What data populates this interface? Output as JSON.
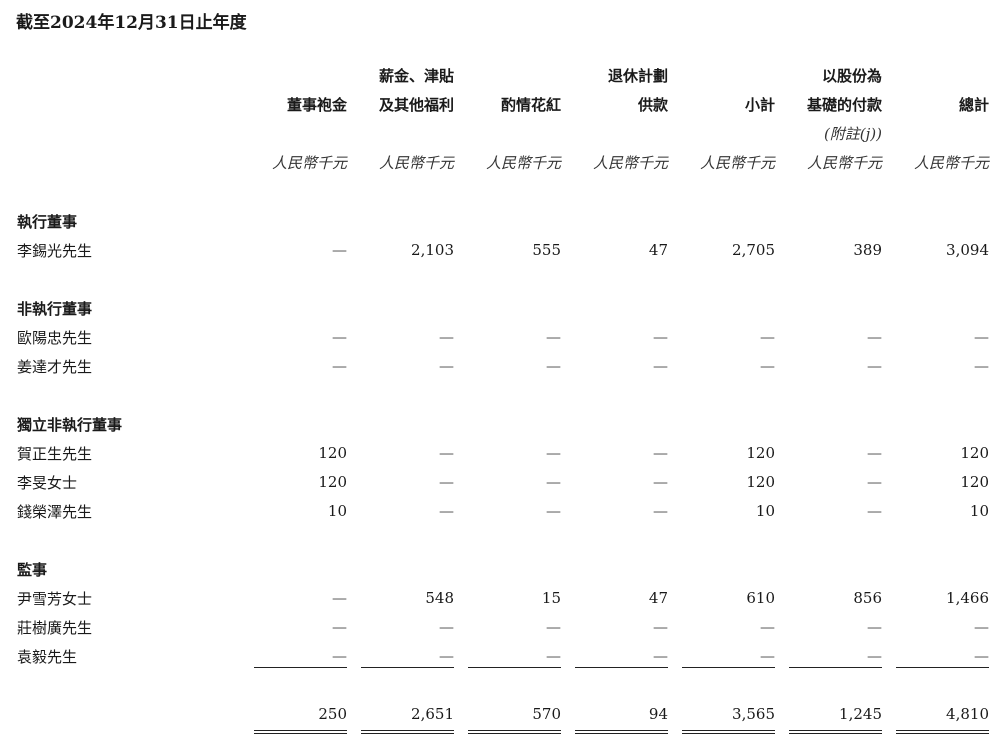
{
  "title": "截至2024年12月31日止年度",
  "header": {
    "line1": [
      "",
      "薪金、津貼",
      "",
      "退休計劃",
      "",
      "以股份為",
      ""
    ],
    "line2": [
      "董事袍金",
      "及其他福利",
      "酌情花紅",
      "供款",
      "小計",
      "基礎的付款",
      "總計"
    ],
    "line3": [
      "",
      "",
      "",
      "",
      "",
      "(附註(j))",
      ""
    ],
    "units": [
      "人民幣千元",
      "人民幣千元",
      "人民幣千元",
      "人民幣千元",
      "人民幣千元",
      "人民幣千元",
      "人民幣千元"
    ]
  },
  "sections": [
    {
      "label": "執行董事",
      "rows": [
        {
          "name": "李錫光先生",
          "values": [
            "—",
            "2,103",
            "555",
            "47",
            "2,705",
            "389",
            "3,094"
          ]
        }
      ]
    },
    {
      "label": "非執行董事",
      "rows": [
        {
          "name": "歐陽忠先生",
          "values": [
            "—",
            "—",
            "—",
            "—",
            "—",
            "—",
            "—"
          ]
        },
        {
          "name": "姜達才先生",
          "values": [
            "—",
            "—",
            "—",
            "—",
            "—",
            "—",
            "—"
          ]
        }
      ]
    },
    {
      "label": "獨立非執行董事",
      "rows": [
        {
          "name": "賀正生先生",
          "values": [
            "120",
            "—",
            "—",
            "—",
            "120",
            "—",
            "120"
          ]
        },
        {
          "name": "李旻女士",
          "values": [
            "120",
            "—",
            "—",
            "—",
            "120",
            "—",
            "120"
          ]
        },
        {
          "name": "錢榮澤先生",
          "values": [
            "10",
            "—",
            "—",
            "—",
            "10",
            "—",
            "10"
          ]
        }
      ]
    },
    {
      "label": "監事",
      "rows": [
        {
          "name": "尹雪芳女士",
          "values": [
            "—",
            "548",
            "15",
            "47",
            "610",
            "856",
            "1,466"
          ]
        },
        {
          "name": "莊樹廣先生",
          "values": [
            "—",
            "—",
            "—",
            "—",
            "—",
            "—",
            "—"
          ]
        },
        {
          "name": "袁毅先生",
          "values": [
            "—",
            "—",
            "—",
            "—",
            "—",
            "—",
            "—"
          ]
        }
      ]
    }
  ],
  "totals": [
    "250",
    "2,651",
    "570",
    "94",
    "3,565",
    "1,245",
    "4,810"
  ]
}
